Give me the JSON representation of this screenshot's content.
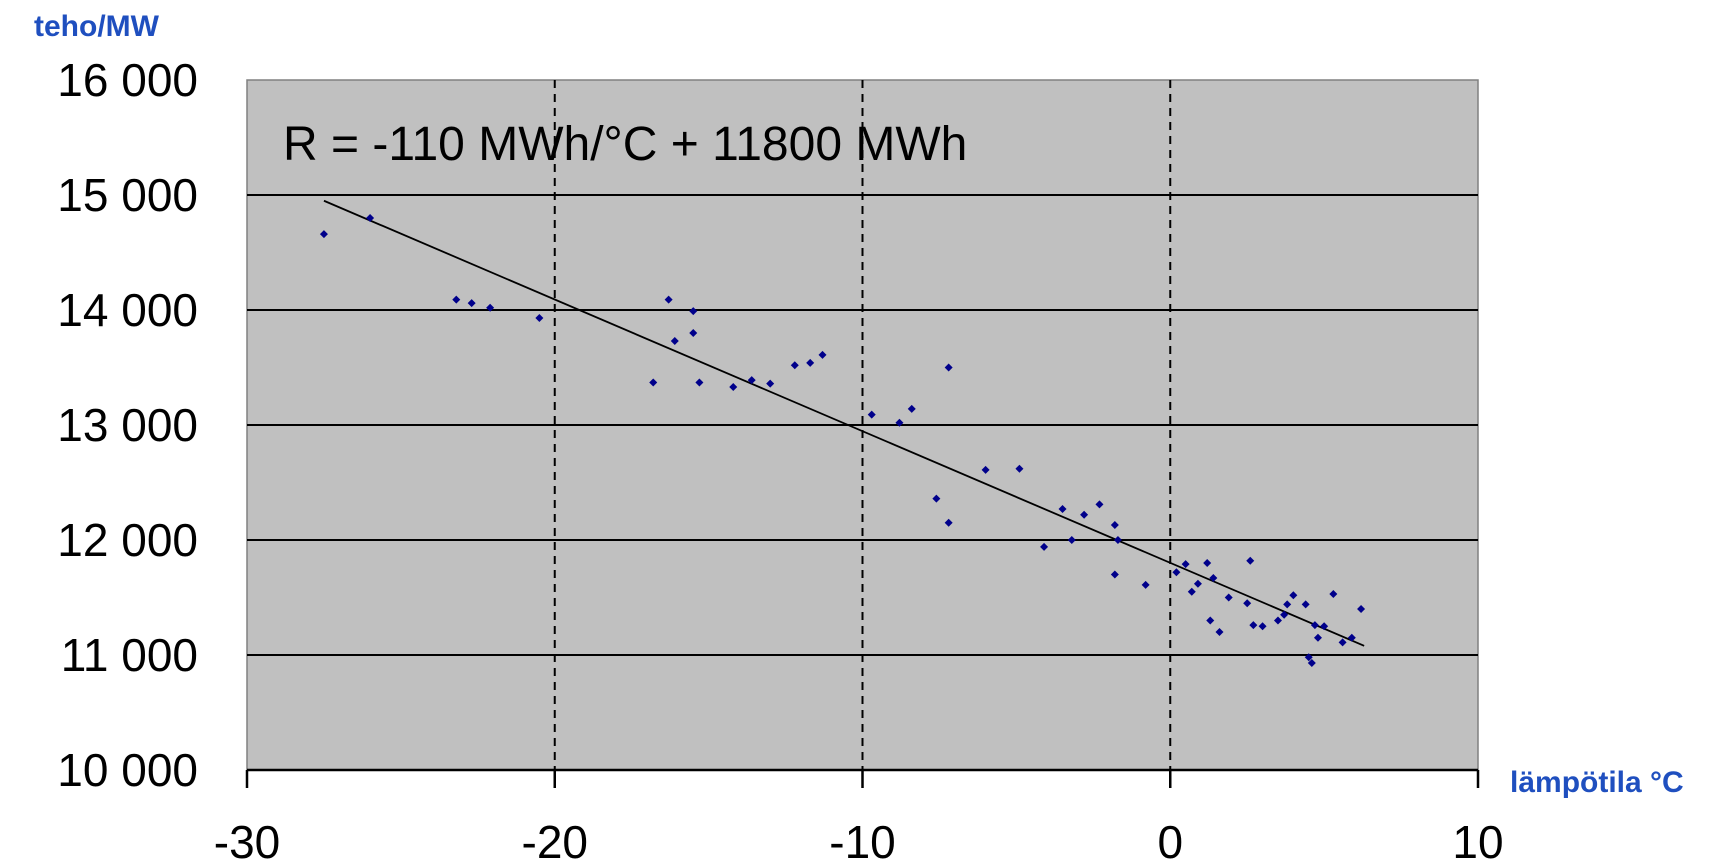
{
  "chart_data": {
    "type": "scatter",
    "title": "",
    "ylabel": "teho/MW",
    "xlabel": "lämpötila °C",
    "xlim": [
      -30,
      10
    ],
    "ylim": [
      10000,
      16000
    ],
    "x_ticks": [
      -30,
      -20,
      -10,
      0,
      10
    ],
    "y_ticks": [
      10000,
      11000,
      12000,
      13000,
      14000,
      15000,
      16000
    ],
    "x_tick_labels": [
      "-30",
      "-20",
      "-10",
      "0",
      "10"
    ],
    "y_tick_labels": [
      "10 000",
      "11 000",
      "12 000",
      "13 000",
      "14 000",
      "15 000",
      "16 000"
    ],
    "grid": {
      "horizontal": "solid",
      "vertical": "dashed"
    },
    "plot_background": "#c0c0c0",
    "point_color": "#00008b",
    "annotation": "R = -110 MWh/°C + 11800 MWh",
    "trendline": {
      "x": [
        -27.5,
        6.3
      ],
      "y": [
        14950,
        11080
      ]
    },
    "points": [
      {
        "x": -27.5,
        "y": 14660
      },
      {
        "x": -26.0,
        "y": 14800
      },
      {
        "x": -23.2,
        "y": 14090
      },
      {
        "x": -22.7,
        "y": 14060
      },
      {
        "x": -22.1,
        "y": 14020
      },
      {
        "x": -20.5,
        "y": 13930
      },
      {
        "x": -16.8,
        "y": 13370
      },
      {
        "x": -16.3,
        "y": 14090
      },
      {
        "x": -16.1,
        "y": 13730
      },
      {
        "x": -15.5,
        "y": 13990
      },
      {
        "x": -15.5,
        "y": 13800
      },
      {
        "x": -15.3,
        "y": 13370
      },
      {
        "x": -14.2,
        "y": 13330
      },
      {
        "x": -13.6,
        "y": 13390
      },
      {
        "x": -13.0,
        "y": 13360
      },
      {
        "x": -12.2,
        "y": 13520
      },
      {
        "x": -11.7,
        "y": 13540
      },
      {
        "x": -11.3,
        "y": 13610
      },
      {
        "x": -9.7,
        "y": 13090
      },
      {
        "x": -8.8,
        "y": 13020
      },
      {
        "x": -8.4,
        "y": 13140
      },
      {
        "x": -7.6,
        "y": 12360
      },
      {
        "x": -7.2,
        "y": 13500
      },
      {
        "x": -7.2,
        "y": 12150
      },
      {
        "x": -6.0,
        "y": 12610
      },
      {
        "x": -4.9,
        "y": 12620
      },
      {
        "x": -4.1,
        "y": 11940
      },
      {
        "x": -3.5,
        "y": 12270
      },
      {
        "x": -3.2,
        "y": 12000
      },
      {
        "x": -2.8,
        "y": 12220
      },
      {
        "x": -2.3,
        "y": 12310
      },
      {
        "x": -1.8,
        "y": 12130
      },
      {
        "x": -1.7,
        "y": 12000
      },
      {
        "x": -1.8,
        "y": 11700
      },
      {
        "x": -0.8,
        "y": 11610
      },
      {
        "x": 0.2,
        "y": 11720
      },
      {
        "x": 0.5,
        "y": 11790
      },
      {
        "x": 0.7,
        "y": 11550
      },
      {
        "x": 0.9,
        "y": 11620
      },
      {
        "x": 1.2,
        "y": 11800
      },
      {
        "x": 1.3,
        "y": 11300
      },
      {
        "x": 1.4,
        "y": 11670
      },
      {
        "x": 1.6,
        "y": 11200
      },
      {
        "x": 1.9,
        "y": 11500
      },
      {
        "x": 2.5,
        "y": 11450
      },
      {
        "x": 2.6,
        "y": 11820
      },
      {
        "x": 2.7,
        "y": 11260
      },
      {
        "x": 3.0,
        "y": 11250
      },
      {
        "x": 3.5,
        "y": 11300
      },
      {
        "x": 3.7,
        "y": 11350
      },
      {
        "x": 3.8,
        "y": 11440
      },
      {
        "x": 4.0,
        "y": 11520
      },
      {
        "x": 4.4,
        "y": 11440
      },
      {
        "x": 4.5,
        "y": 10980
      },
      {
        "x": 4.6,
        "y": 10930
      },
      {
        "x": 4.7,
        "y": 11260
      },
      {
        "x": 4.8,
        "y": 11150
      },
      {
        "x": 5.0,
        "y": 11250
      },
      {
        "x": 5.3,
        "y": 11530
      },
      {
        "x": 5.6,
        "y": 11110
      },
      {
        "x": 5.9,
        "y": 11150
      },
      {
        "x": 6.2,
        "y": 11400
      }
    ]
  }
}
